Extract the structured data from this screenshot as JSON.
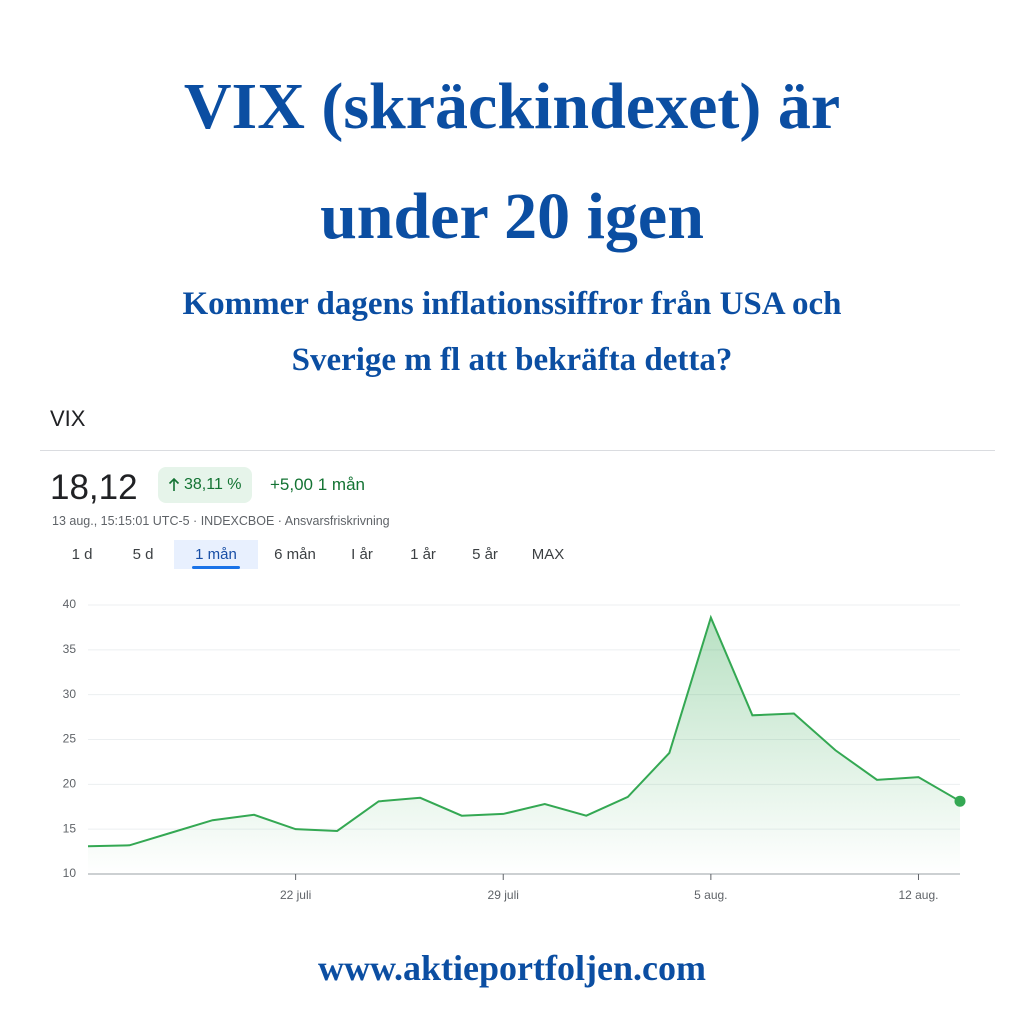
{
  "header": {
    "title_lines": [
      "VIX (skräckindexet) är",
      "under 20 igen"
    ],
    "subtitle_lines": [
      "Kommer dagens inflationssiffror från USA och",
      "Sverige m fl att bekräfta detta?"
    ]
  },
  "quote": {
    "symbol": "VIX",
    "price": "18,12",
    "change_percent": "38,11 %",
    "change": "+5,00 1 mån",
    "meta": "13 aug., 15:15:01 UTC-5 · INDEXCBOE · Ansvarsfriskrivning",
    "tabs": [
      "1 d",
      "5 d",
      "1 mån",
      "6 mån",
      "I år",
      "1 år",
      "5 år",
      "MAX"
    ],
    "active_tab": 2
  },
  "chart_data": {
    "type": "line",
    "categories": [
      null,
      null,
      null,
      null,
      null,
      "22 juli",
      null,
      null,
      null,
      null,
      "29 juli",
      null,
      null,
      null,
      null,
      "5 aug.",
      null,
      null,
      null,
      null,
      "12 aug.",
      null
    ],
    "values": [
      13.1,
      13.2,
      14.6,
      16.0,
      16.6,
      15.0,
      14.8,
      18.1,
      18.5,
      16.5,
      16.7,
      17.8,
      16.5,
      18.6,
      23.5,
      38.6,
      27.7,
      27.9,
      23.8,
      20.5,
      20.8,
      18.12
    ],
    "color": "#34a853",
    "ylim": [
      10,
      40
    ],
    "yticks": [
      10,
      15,
      20,
      25,
      30,
      35,
      40
    ],
    "grid": true
  },
  "footer": {
    "url": "www.aktieportfoljen.com"
  }
}
